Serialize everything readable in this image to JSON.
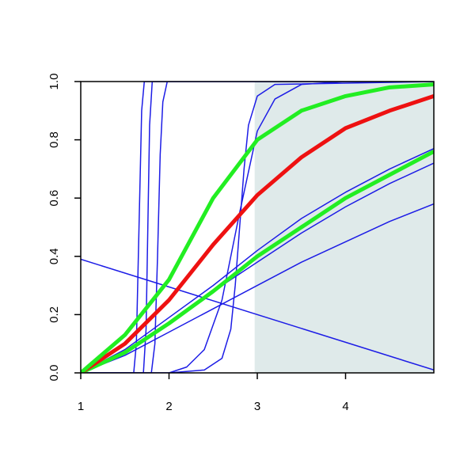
{
  "chart_data": {
    "type": "line",
    "xlim": [
      1,
      5
    ],
    "ylim": [
      0,
      1
    ],
    "xticks": [
      1,
      2,
      3,
      4
    ],
    "yticks": [
      {
        "value": 0,
        "label": "0.0"
      },
      {
        "value": 0.2,
        "label": "0.2"
      },
      {
        "value": 0.4,
        "label": "0.4"
      },
      {
        "value": 0.6,
        "label": "0.6"
      },
      {
        "value": 0.8,
        "label": "0.8"
      },
      {
        "value": 1,
        "label": "1.0"
      }
    ],
    "shade": {
      "xmin": 2.97,
      "xmax": 5,
      "color": "#dfeaea"
    },
    "series": [
      {
        "color": "#1c1ce6",
        "linewidth": 1.5,
        "x": [
          1,
          1.6,
          1.63,
          1.66,
          1.69,
          1.72,
          5
        ],
        "values": [
          0,
          0,
          0.1,
          0.5,
          0.9,
          1,
          1
        ]
      },
      {
        "color": "#1c1ce6",
        "linewidth": 1.5,
        "x": [
          1,
          1.71,
          1.74,
          1.76,
          1.78,
          1.81,
          5
        ],
        "values": [
          0,
          0,
          0.15,
          0.5,
          0.85,
          1,
          1
        ]
      },
      {
        "color": "#1c1ce6",
        "linewidth": 1.5,
        "x": [
          1,
          1.8,
          1.84,
          1.87,
          1.9,
          1.93,
          1.98,
          5
        ],
        "values": [
          0,
          0,
          0.1,
          0.4,
          0.75,
          0.93,
          1,
          1
        ]
      },
      {
        "color": "#1c1ce6",
        "linewidth": 1.5,
        "x": [
          1,
          2,
          2.4,
          2.6,
          2.7,
          2.75,
          2.8,
          2.85,
          2.9,
          3,
          3.2,
          5
        ],
        "values": [
          0,
          0,
          0.01,
          0.05,
          0.15,
          0.3,
          0.5,
          0.7,
          0.85,
          0.95,
          0.99,
          1
        ]
      },
      {
        "color": "#1c1ce6",
        "linewidth": 1.5,
        "x": [
          1,
          2,
          2.2,
          2.4,
          2.6,
          2.8,
          3,
          3.2,
          3.5,
          4,
          5
        ],
        "values": [
          0,
          0,
          0.02,
          0.08,
          0.25,
          0.55,
          0.83,
          0.94,
          0.99,
          1,
          1
        ]
      },
      {
        "color": "#1c1ce6",
        "linewidth": 1.5,
        "x": [
          1,
          1.5,
          2,
          2.5,
          3,
          3.5,
          4,
          4.5,
          5
        ],
        "values": [
          0,
          0.08,
          0.19,
          0.3,
          0.42,
          0.53,
          0.62,
          0.7,
          0.77
        ]
      },
      {
        "color": "#1c1ce6",
        "linewidth": 1.5,
        "x": [
          1,
          1.5,
          2,
          2.5,
          3,
          3.5,
          4,
          4.5,
          5
        ],
        "values": [
          0,
          0.07,
          0.17,
          0.28,
          0.38,
          0.48,
          0.57,
          0.65,
          0.72
        ]
      },
      {
        "color": "#1c1ce6",
        "linewidth": 1.5,
        "x": [
          1,
          1.5,
          2,
          2.5,
          3,
          3.5,
          4,
          4.5,
          5
        ],
        "values": [
          0,
          0.06,
          0.14,
          0.22,
          0.3,
          0.38,
          0.45,
          0.52,
          0.58
        ]
      },
      {
        "color": "#1c1ce6",
        "linewidth": 1.5,
        "x": [
          1,
          5
        ],
        "values": [
          0.39,
          0.01
        ]
      },
      {
        "color": "#22ee22",
        "linewidth": 5,
        "x": [
          1,
          1.5,
          2,
          2.5,
          3,
          3.5,
          4,
          4.5,
          5
        ],
        "values": [
          0,
          0.07,
          0.17,
          0.28,
          0.4,
          0.5,
          0.6,
          0.68,
          0.76
        ]
      },
      {
        "color": "#ee1111",
        "linewidth": 5,
        "x": [
          1,
          1.5,
          2,
          2.5,
          3,
          3.5,
          4,
          4.5,
          5
        ],
        "values": [
          0,
          0.1,
          0.25,
          0.44,
          0.61,
          0.74,
          0.84,
          0.9,
          0.95
        ]
      },
      {
        "color": "#22ee22",
        "linewidth": 5,
        "x": [
          1,
          1.5,
          2,
          2.5,
          3,
          3.5,
          4,
          4.5,
          5
        ],
        "values": [
          0,
          0.13,
          0.32,
          0.6,
          0.8,
          0.9,
          0.95,
          0.98,
          0.99
        ]
      }
    ]
  }
}
